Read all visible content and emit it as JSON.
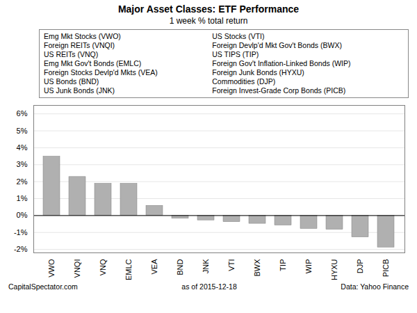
{
  "chart_data": {
    "type": "bar",
    "title": "Major Asset Classes: ETF Performance",
    "subtitle": "1 week % total return",
    "categories": [
      "VWO",
      "VNQI",
      "VNQ",
      "EMLC",
      "VEA",
      "BND",
      "JNK",
      "VTI",
      "BWX",
      "TIP",
      "WIP",
      "HYXU",
      "DJP",
      "PICB"
    ],
    "values": [
      3.48,
      2.28,
      1.88,
      1.88,
      0.58,
      -0.18,
      -0.28,
      -0.38,
      -0.48,
      -0.58,
      -0.78,
      -0.83,
      -1.28,
      -1.88
    ],
    "color": "#b0b0b0",
    "ylim": [
      -2.2,
      6.5
    ],
    "yticks": [
      {
        "value": -2,
        "label": "-2%"
      },
      {
        "value": -1,
        "label": "-1%"
      },
      {
        "value": 0,
        "label": "0%"
      },
      {
        "value": 1,
        "label": "1%"
      },
      {
        "value": 2,
        "label": "2%"
      },
      {
        "value": 3,
        "label": "3%"
      },
      {
        "value": 4,
        "label": "4%"
      },
      {
        "value": 5,
        "label": "5%"
      },
      {
        "value": 6,
        "label": "6%"
      }
    ],
    "grid": true,
    "annotations": [
      "Emg Mkt Stocks (VWO)",
      "US Stocks (VTI)",
      "Foreign REITs (VNQI)",
      "Foreign Devlp'd Mkt Gov't Bonds (BWX)",
      "US REITs (VNQ)",
      "US TIPS (TIP)",
      "Emg Mkt Gov't Bonds (EMLC)",
      "Foreign Gov't Inflation-Linked Bonds (WIP)",
      "Foreign Stocks Devlp'd Mkts (VEA)",
      "Foreign Junk Bonds (HYXU)",
      "US Bonds (BND)",
      "Commodities (DJP)",
      "US Junk Bonds (JNK)",
      "Foreign Invest-Grade Corp Bonds (PICB)"
    ],
    "footnotes": [
      "CapitalSpectator.com",
      "as of  2015-12-18",
      "Data: Yahoo Finance"
    ]
  }
}
